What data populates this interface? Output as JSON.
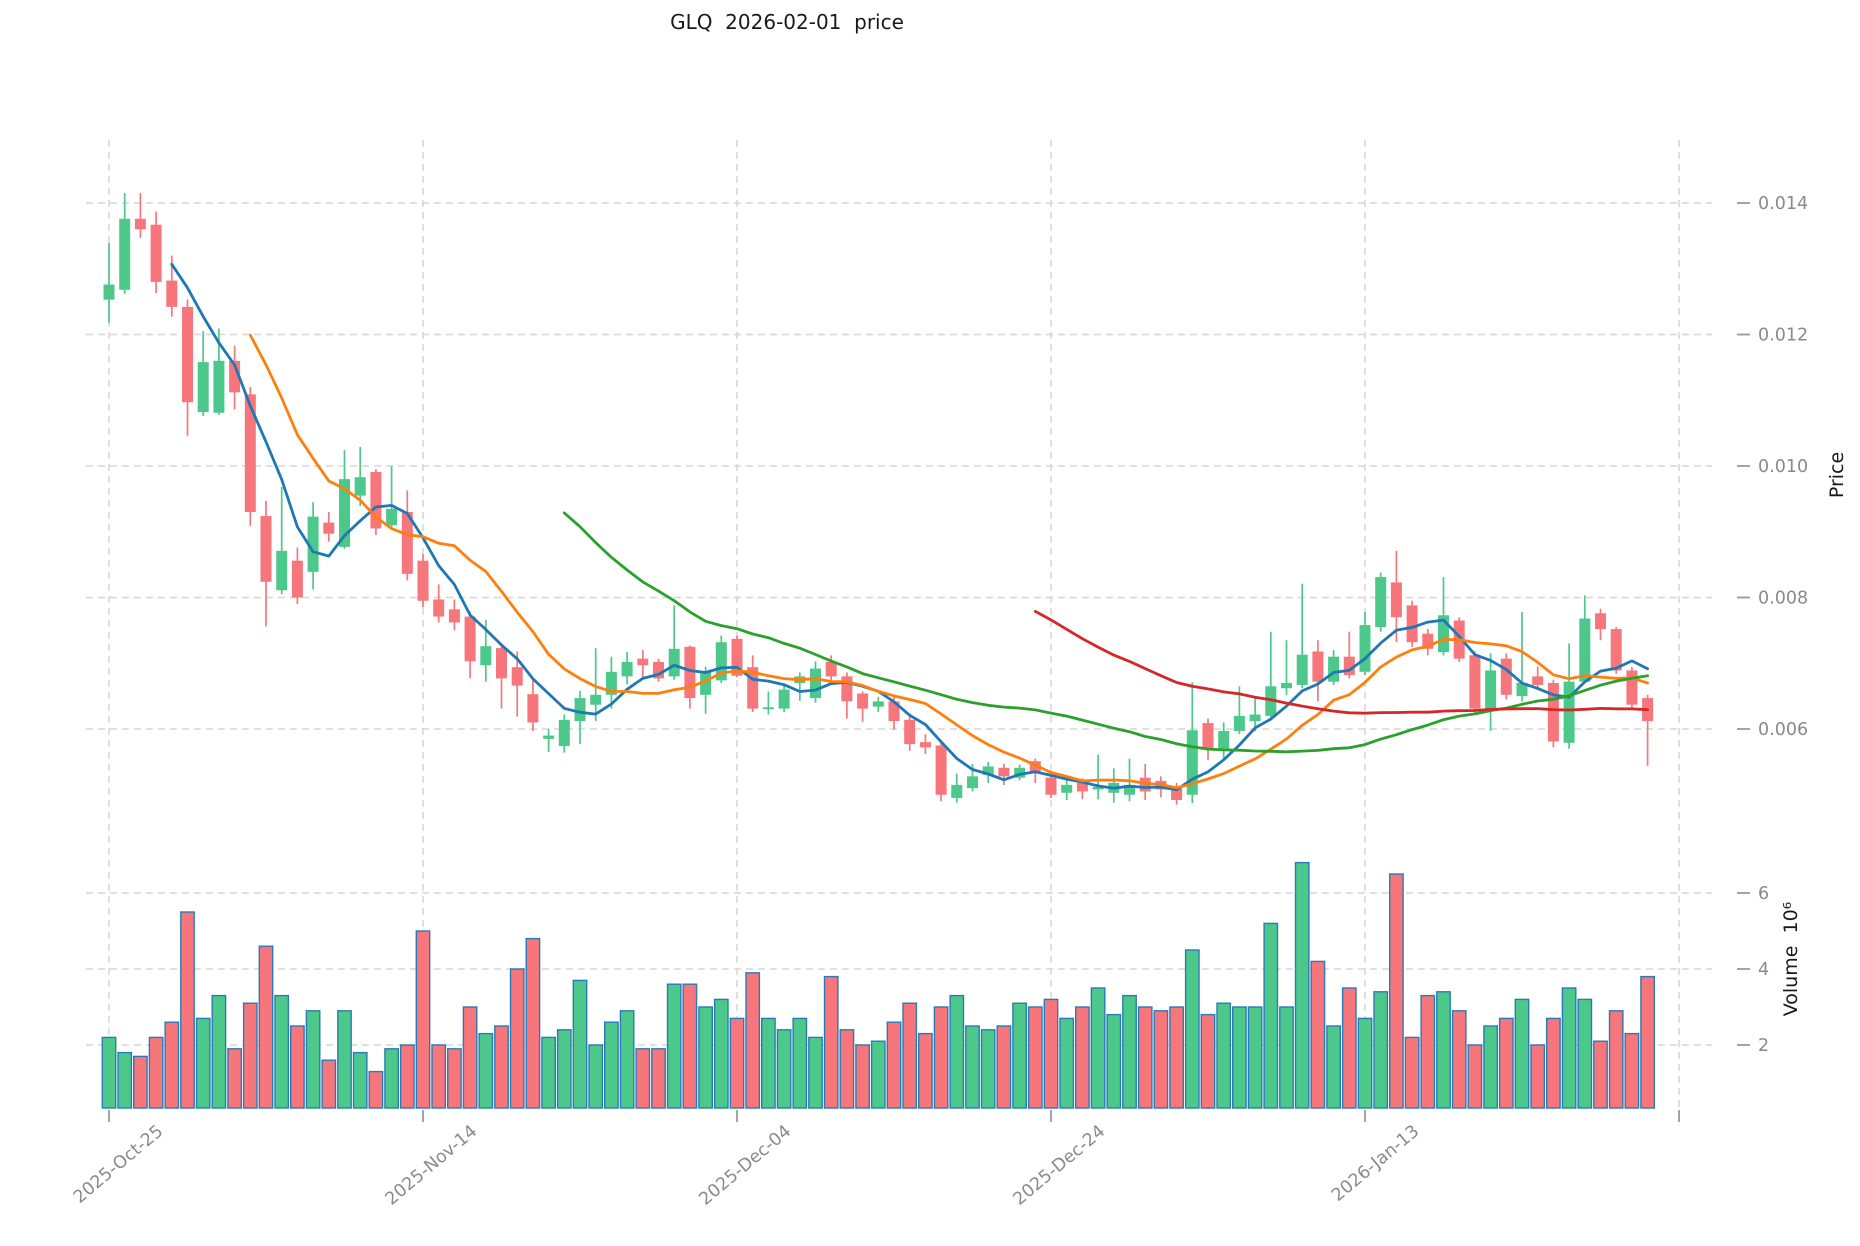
{
  "title": "GLQ  2026-02-01  price",
  "chart_data": {
    "type": "candlestick",
    "title": "GLQ  2026-02-01  price",
    "legend_position": "none",
    "grid": true,
    "price_axis": {
      "label": "Price",
      "side": "right",
      "ticks": [
        0.006,
        0.008,
        0.01,
        0.012,
        0.014
      ],
      "tick_labels": [
        "0.006",
        "0.008",
        "0.010",
        "0.012",
        "0.014"
      ]
    },
    "volume_axis": {
      "label": "Volume  10⁶",
      "side": "right",
      "ticks": [
        2,
        4,
        6
      ],
      "tick_labels": [
        "2",
        "4",
        "6"
      ],
      "unit": "10⁶"
    },
    "x_axis": {
      "tick_labels": [
        "2025-Oct-25",
        "2025-Nov-14",
        "2025-Dec-04",
        "2025-Dec-24",
        "2026-Jan-13"
      ],
      "tick_indices": [
        0,
        20,
        40,
        60,
        80
      ],
      "extra_gridline_index": 100
    },
    "moving_averages": [
      {
        "window": 5,
        "color": "#1f77b4"
      },
      {
        "window": 10,
        "color": "#ff7f0e"
      },
      {
        "window": 30,
        "color": "#2ca02c"
      },
      {
        "window": 60,
        "color": "#d62728"
      }
    ],
    "colors": {
      "up": "#4cc88a",
      "down": "#f6767b",
      "volume_edge": "#2a7ab9",
      "grid": "#d6d6d6",
      "tick": "#9a9a9a",
      "tick_text": "#8a8a8a"
    },
    "dates": [
      "2025-10-25",
      "2025-10-26",
      "2025-10-27",
      "2025-10-28",
      "2025-10-29",
      "2025-10-30",
      "2025-10-31",
      "2025-11-01",
      "2025-11-02",
      "2025-11-03",
      "2025-11-04",
      "2025-11-05",
      "2025-11-06",
      "2025-11-07",
      "2025-11-08",
      "2025-11-09",
      "2025-11-10",
      "2025-11-11",
      "2025-11-12",
      "2025-11-13",
      "2025-11-14",
      "2025-11-15",
      "2025-11-16",
      "2025-11-17",
      "2025-11-18",
      "2025-11-19",
      "2025-11-20",
      "2025-11-21",
      "2025-11-22",
      "2025-11-23",
      "2025-11-24",
      "2025-11-25",
      "2025-11-26",
      "2025-11-27",
      "2025-11-28",
      "2025-11-29",
      "2025-11-30",
      "2025-12-01",
      "2025-12-02",
      "2025-12-03",
      "2025-12-04",
      "2025-12-05",
      "2025-12-06",
      "2025-12-07",
      "2025-12-08",
      "2025-12-09",
      "2025-12-10",
      "2025-12-11",
      "2025-12-12",
      "2025-12-13",
      "2025-12-14",
      "2025-12-15",
      "2025-12-16",
      "2025-12-17",
      "2025-12-18",
      "2025-12-19",
      "2025-12-20",
      "2025-12-21",
      "2025-12-22",
      "2025-12-23",
      "2025-12-24",
      "2025-12-25",
      "2025-12-26",
      "2025-12-27",
      "2025-12-28",
      "2025-12-29",
      "2025-12-30",
      "2025-12-31",
      "2026-01-01",
      "2026-01-02",
      "2026-01-03",
      "2026-01-04",
      "2026-01-05",
      "2026-01-06",
      "2026-01-07",
      "2026-01-08",
      "2026-01-09",
      "2026-01-10",
      "2026-01-11",
      "2026-01-12",
      "2026-01-13",
      "2026-01-14",
      "2026-01-15",
      "2026-01-16",
      "2026-01-17",
      "2026-01-18",
      "2026-01-19",
      "2026-01-20",
      "2026-01-21",
      "2026-01-22",
      "2026-01-23",
      "2026-01-24",
      "2026-01-25",
      "2026-01-26",
      "2026-01-27",
      "2026-01-28",
      "2026-01-29",
      "2026-01-30",
      "2026-01-31"
    ],
    "ohlc": [
      [
        0.01253,
        0.01339,
        0.01218,
        0.01276
      ],
      [
        0.01268,
        0.01415,
        0.01262,
        0.01376
      ],
      [
        0.01376,
        0.01415,
        0.01347,
        0.0136
      ],
      [
        0.01367,
        0.01387,
        0.01263,
        0.0128
      ],
      [
        0.01282,
        0.0132,
        0.01227,
        0.01242
      ],
      [
        0.01242,
        0.01253,
        0.01046,
        0.01097
      ],
      [
        0.01082,
        0.01205,
        0.01076,
        0.01158
      ],
      [
        0.01081,
        0.01209,
        0.01078,
        0.0116
      ],
      [
        0.0116,
        0.01183,
        0.01086,
        0.01112
      ],
      [
        0.01109,
        0.0112,
        0.00909,
        0.0093
      ],
      [
        0.00924,
        0.00947,
        0.00756,
        0.00824
      ],
      [
        0.00811,
        0.00968,
        0.00805,
        0.00871
      ],
      [
        0.00856,
        0.00876,
        0.0079,
        0.008
      ],
      [
        0.00839,
        0.00945,
        0.00812,
        0.00923
      ],
      [
        0.00914,
        0.0093,
        0.00885,
        0.00897
      ],
      [
        0.00877,
        0.01024,
        0.00874,
        0.0098
      ],
      [
        0.00955,
        0.01029,
        0.00939,
        0.00983
      ],
      [
        0.00991,
        0.00995,
        0.00895,
        0.00905
      ],
      [
        0.0091,
        0.01,
        0.00903,
        0.00935
      ],
      [
        0.0093,
        0.00963,
        0.00826,
        0.00836
      ],
      [
        0.00856,
        0.00866,
        0.00785,
        0.00795
      ],
      [
        0.00797,
        0.0082,
        0.00762,
        0.00771
      ],
      [
        0.00782,
        0.00797,
        0.0075,
        0.00762
      ],
      [
        0.00771,
        0.00779,
        0.00677,
        0.00703
      ],
      [
        0.00697,
        0.00766,
        0.00672,
        0.00726
      ],
      [
        0.00723,
        0.0073,
        0.00631,
        0.00677
      ],
      [
        0.00694,
        0.00718,
        0.00619,
        0.00666
      ],
      [
        0.00653,
        0.00677,
        0.00597,
        0.0061
      ],
      [
        0.00585,
        0.006,
        0.00565,
        0.0059
      ],
      [
        0.00574,
        0.00622,
        0.00564,
        0.00614
      ],
      [
        0.00612,
        0.00658,
        0.00577,
        0.00647
      ],
      [
        0.00637,
        0.00723,
        0.00612,
        0.00652
      ],
      [
        0.00652,
        0.0071,
        0.00631,
        0.00687
      ],
      [
        0.0068,
        0.00717,
        0.00668,
        0.00702
      ],
      [
        0.00707,
        0.0072,
        0.00677,
        0.00697
      ],
      [
        0.00702,
        0.00707,
        0.00672,
        0.00677
      ],
      [
        0.0068,
        0.00788,
        0.00675,
        0.00722
      ],
      [
        0.00725,
        0.00727,
        0.00631,
        0.00647
      ],
      [
        0.00652,
        0.00695,
        0.00623,
        0.00687
      ],
      [
        0.00674,
        0.00742,
        0.0067,
        0.00732
      ],
      [
        0.00737,
        0.00742,
        0.00679,
        0.00681
      ],
      [
        0.00694,
        0.00712,
        0.00626,
        0.00631
      ],
      [
        0.00631,
        0.00657,
        0.00622,
        0.00633
      ],
      [
        0.00631,
        0.00667,
        0.00626,
        0.0066
      ],
      [
        0.0067,
        0.00686,
        0.00643,
        0.0068
      ],
      [
        0.00647,
        0.00703,
        0.0064,
        0.00692
      ],
      [
        0.00702,
        0.00712,
        0.00674,
        0.0068
      ],
      [
        0.0068,
        0.00686,
        0.00616,
        0.00642
      ],
      [
        0.00654,
        0.00657,
        0.00611,
        0.00631
      ],
      [
        0.00634,
        0.00649,
        0.00626,
        0.00642
      ],
      [
        0.00642,
        0.00652,
        0.00599,
        0.00612
      ],
      [
        0.00614,
        0.00624,
        0.00567,
        0.00577
      ],
      [
        0.0058,
        0.00592,
        0.00562,
        0.00572
      ],
      [
        0.00575,
        0.0058,
        0.0049,
        0.005
      ],
      [
        0.00495,
        0.00532,
        0.00488,
        0.00515
      ],
      [
        0.0051,
        0.00547,
        0.00505,
        0.00528
      ],
      [
        0.0053,
        0.0055,
        0.00518,
        0.00543
      ],
      [
        0.00541,
        0.00547,
        0.00515,
        0.00528
      ],
      [
        0.00526,
        0.00546,
        0.00522,
        0.00541
      ],
      [
        0.00551,
        0.00555,
        0.00518,
        0.00535
      ],
      [
        0.00526,
        0.00531,
        0.00495,
        0.005
      ],
      [
        0.00503,
        0.00522,
        0.00492,
        0.00515
      ],
      [
        0.00518,
        0.00525,
        0.00493,
        0.00505
      ],
      [
        0.00508,
        0.00561,
        0.00493,
        0.00512
      ],
      [
        0.00503,
        0.0054,
        0.00488,
        0.00518
      ],
      [
        0.005,
        0.00555,
        0.0049,
        0.00515
      ],
      [
        0.00526,
        0.00547,
        0.00492,
        0.00505
      ],
      [
        0.00521,
        0.00528,
        0.00496,
        0.00508
      ],
      [
        0.0051,
        0.00518,
        0.00485,
        0.00492
      ],
      [
        0.005,
        0.00671,
        0.00487,
        0.00598
      ],
      [
        0.00609,
        0.00616,
        0.00553,
        0.00571
      ],
      [
        0.00567,
        0.0061,
        0.00556,
        0.00597
      ],
      [
        0.00597,
        0.00665,
        0.00592,
        0.0062
      ],
      [
        0.00612,
        0.00647,
        0.00597,
        0.00622
      ],
      [
        0.0062,
        0.00748,
        0.00614,
        0.00665
      ],
      [
        0.00662,
        0.00735,
        0.00652,
        0.0067
      ],
      [
        0.00667,
        0.00821,
        0.00662,
        0.00713
      ],
      [
        0.00718,
        0.00735,
        0.00642,
        0.00672
      ],
      [
        0.00672,
        0.0072,
        0.00667,
        0.0071
      ],
      [
        0.0071,
        0.00748,
        0.00677,
        0.00682
      ],
      [
        0.00687,
        0.00778,
        0.00682,
        0.00758
      ],
      [
        0.00755,
        0.00838,
        0.00748,
        0.00831
      ],
      [
        0.00823,
        0.00871,
        0.00732,
        0.0077
      ],
      [
        0.00788,
        0.00795,
        0.00725,
        0.00732
      ],
      [
        0.00745,
        0.00752,
        0.00712,
        0.00722
      ],
      [
        0.00717,
        0.00831,
        0.00712,
        0.00773
      ],
      [
        0.00765,
        0.0077,
        0.00702,
        0.00707
      ],
      [
        0.00712,
        0.00718,
        0.00624,
        0.00631
      ],
      [
        0.00631,
        0.00715,
        0.00597,
        0.00689
      ],
      [
        0.00707,
        0.00715,
        0.00645,
        0.00652
      ],
      [
        0.0065,
        0.00778,
        0.00642,
        0.0067
      ],
      [
        0.0068,
        0.00695,
        0.00659,
        0.00667
      ],
      [
        0.0067,
        0.00675,
        0.00572,
        0.00581
      ],
      [
        0.00579,
        0.0073,
        0.0057,
        0.00672
      ],
      [
        0.00672,
        0.00803,
        0.0067,
        0.00768
      ],
      [
        0.00776,
        0.00783,
        0.00735,
        0.00752
      ],
      [
        0.00752,
        0.00755,
        0.00684,
        0.00689
      ],
      [
        0.00689,
        0.00694,
        0.00629,
        0.00637
      ],
      [
        0.00647,
        0.00652,
        0.00544,
        0.00612
      ]
    ],
    "volumes_millions": [
      2.2,
      1.8,
      1.7,
      2.2,
      2.6,
      5.5,
      2.7,
      3.3,
      1.9,
      3.1,
      4.6,
      3.3,
      2.5,
      2.9,
      1.6,
      2.9,
      1.8,
      1.3,
      1.9,
      2.0,
      5.0,
      2.0,
      1.9,
      3.0,
      2.3,
      2.5,
      4.0,
      4.8,
      2.2,
      2.4,
      3.7,
      2.0,
      2.6,
      2.9,
      1.9,
      1.9,
      3.6,
      3.6,
      3.0,
      3.2,
      2.7,
      3.9,
      2.7,
      2.4,
      2.7,
      2.2,
      3.8,
      2.4,
      2.0,
      2.1,
      2.6,
      3.1,
      2.3,
      3.0,
      3.3,
      2.5,
      2.4,
      2.5,
      3.1,
      3.0,
      3.2,
      2.7,
      3.0,
      3.5,
      2.8,
      3.3,
      3.0,
      2.9,
      3.0,
      4.5,
      2.8,
      3.1,
      3.0,
      3.0,
      5.2,
      3.0,
      6.8,
      4.2,
      2.5,
      3.5,
      2.7,
      3.4,
      6.5,
      2.2,
      3.3,
      3.4,
      2.9,
      2.0,
      2.5,
      2.7,
      3.2,
      2.0,
      2.7,
      3.5,
      3.2,
      2.1,
      2.9,
      2.3,
      3.8
    ]
  }
}
